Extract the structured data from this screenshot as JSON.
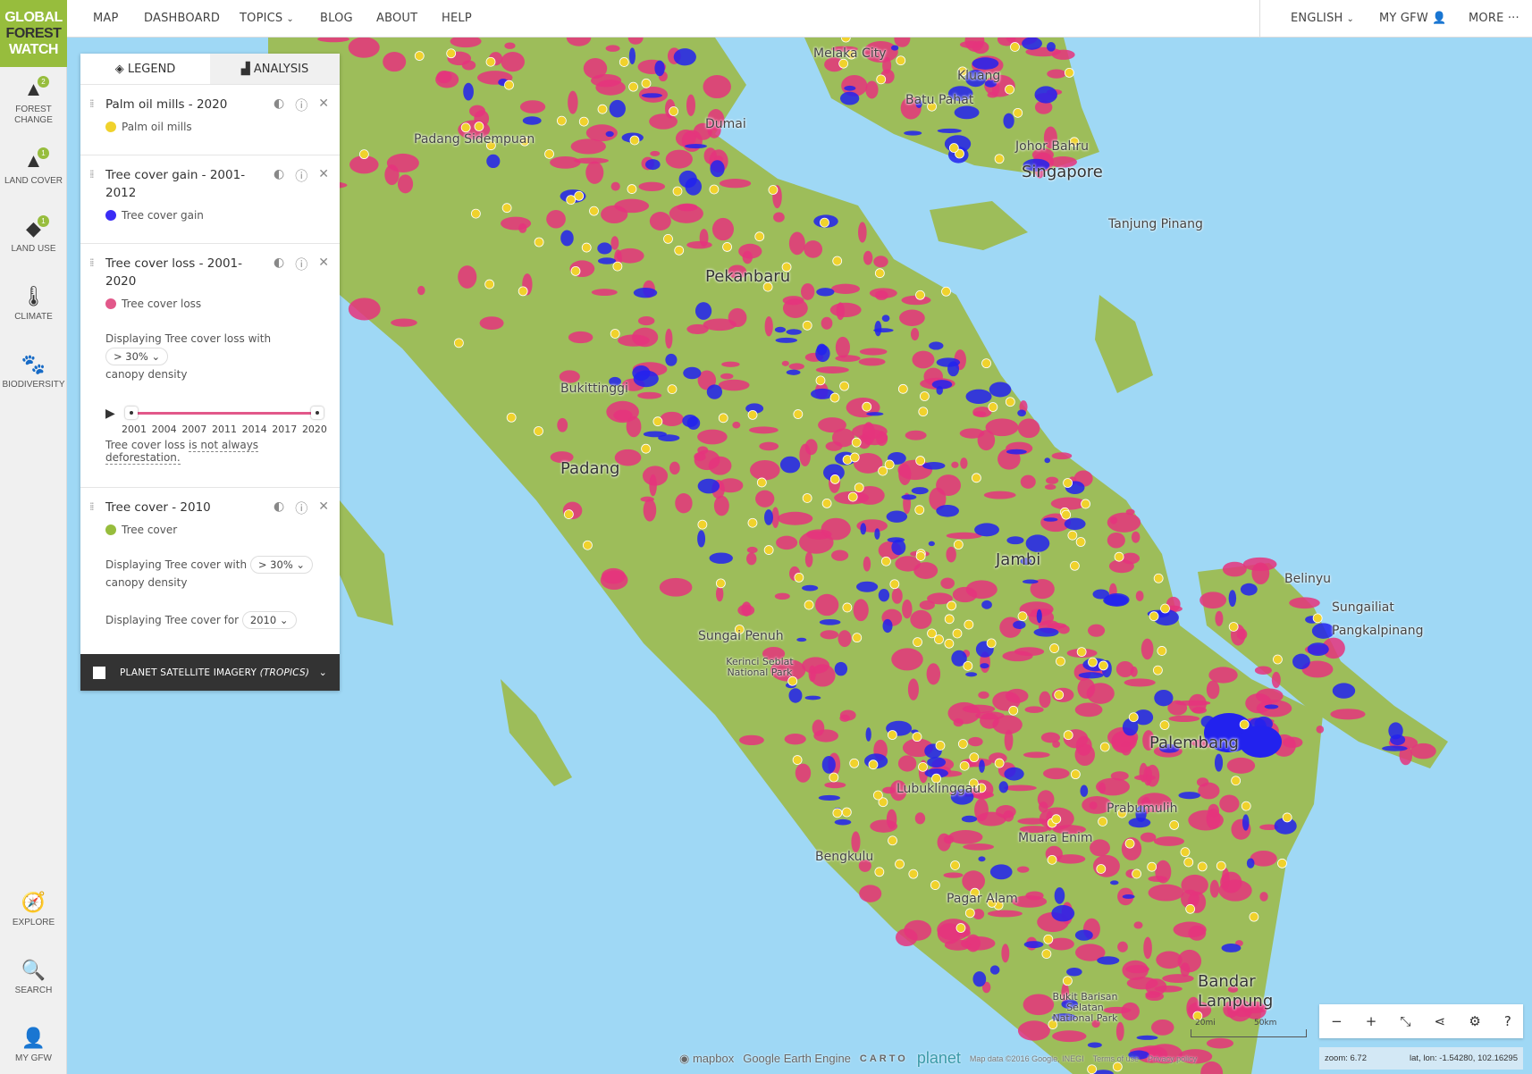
{
  "brand": {
    "logo_lines": [
      "GLOBAL",
      "FOREST",
      "WATCH"
    ],
    "accent": "#97bd3d"
  },
  "nav": {
    "items": [
      "MAP",
      "DASHBOARD",
      "TOPICS",
      "BLOG",
      "ABOUT",
      "HELP"
    ],
    "right": {
      "language": "ENGLISH",
      "account": "MY GFW",
      "more": "MORE"
    }
  },
  "sidebar": {
    "top": [
      {
        "label": "FOREST CHANGE",
        "icon": "tree-icon",
        "badge": "2"
      },
      {
        "label": "LAND COVER",
        "icon": "tree-ground-icon",
        "badge": "1"
      },
      {
        "label": "LAND USE",
        "icon": "land-parcels-icon",
        "badge": "1"
      },
      {
        "label": "CLIMATE",
        "icon": "thermometer-icon"
      },
      {
        "label": "BIODIVERSITY",
        "icon": "paw-icon"
      }
    ],
    "bottom": [
      {
        "label": "EXPLORE",
        "icon": "compass-icon"
      },
      {
        "label": "SEARCH",
        "icon": "search-icon"
      },
      {
        "label": "MY GFW",
        "icon": "user-icon"
      }
    ]
  },
  "legend": {
    "tabs": {
      "legend": "LEGEND",
      "analysis": "ANALYSIS",
      "active": "legend"
    },
    "layers": [
      {
        "title": "Palm oil mills - 2020",
        "key": "Palm oil mills",
        "color": "#f0d22c"
      },
      {
        "title": "Tree cover gain - 2001-2012",
        "key": "Tree cover gain",
        "color": "#3a2cf5"
      },
      {
        "title": "Tree cover loss - 2001-2020",
        "key": "Tree cover loss",
        "color": "#e2588a",
        "density_prefix": "Displaying Tree cover loss with",
        "density": "> 30%",
        "density_suffix": "canopy density",
        "timeline": {
          "years": [
            "2001",
            "2004",
            "2007",
            "2011",
            "2014",
            "2017",
            "2020"
          ],
          "start": "2001",
          "end": "2020"
        },
        "note_prefix": "Tree cover loss ",
        "note_link": "is not always deforestation."
      },
      {
        "title": "Tree cover - 2010",
        "key": "Tree cover",
        "color": "#97bd3d",
        "density_prefix": "Displaying Tree cover with",
        "density": "> 30%",
        "density_suffix": "canopy density",
        "year_prefix": "Displaying Tree cover for",
        "year": "2010"
      }
    ],
    "planet": {
      "label": "PLANET SATELLITE IMAGERY ",
      "label_italic": "(TROPICS)",
      "checked": false
    }
  },
  "map": {
    "colors": {
      "water": "#9fd8f5",
      "land": "#9dbd5a",
      "loss": "#e5347c",
      "gain": "#2222ee",
      "mills": "#f0d22c"
    },
    "places": [
      {
        "name": "Melaka City",
        "size": "n"
      },
      {
        "name": "Kluang",
        "size": "n"
      },
      {
        "name": "Batu Pahat",
        "size": "n"
      },
      {
        "name": "Dumai",
        "size": "n"
      },
      {
        "name": "Padang Sidempuan",
        "size": "n"
      },
      {
        "name": "Johor Bahru",
        "size": "n"
      },
      {
        "name": "Singapore",
        "size": "big"
      },
      {
        "name": "Tanjung Pinang",
        "size": "n"
      },
      {
        "name": "Pekanbaru",
        "size": "big"
      },
      {
        "name": "Bukittinggi",
        "size": "n"
      },
      {
        "name": "Padang",
        "size": "big"
      },
      {
        "name": "Jambi",
        "size": "big"
      },
      {
        "name": "Belinyu",
        "size": "n"
      },
      {
        "name": "Sungailiat",
        "size": "n"
      },
      {
        "name": "Pangkalpinang",
        "size": "n"
      },
      {
        "name": "Sungai Penuh",
        "size": "n"
      },
      {
        "name": "Kerinci Seblat National Park",
        "size": "small"
      },
      {
        "name": "Palembang",
        "size": "big"
      },
      {
        "name": "Lubuklinggau",
        "size": "n"
      },
      {
        "name": "Prabumulih",
        "size": "n"
      },
      {
        "name": "Muara Enim",
        "size": "n"
      },
      {
        "name": "Bengkulu",
        "size": "n"
      },
      {
        "name": "Pagar Alam",
        "size": "n"
      },
      {
        "name": "Bukit Barisan Selatan National Park",
        "size": "small"
      },
      {
        "name": "Bandar Lampung",
        "size": "big"
      }
    ],
    "attribution": {
      "mapbox": "mapbox",
      "gee": "Google Earth Engine",
      "carto": "CARTO",
      "planet": "planet",
      "data": "Map data ©2016 Google, INEGI",
      "terms": "Terms of use",
      "privacy": "Privacy policy"
    },
    "scale": {
      "imperial": "20mi",
      "metric": "50km"
    },
    "controls": [
      "zoom-out",
      "zoom-in",
      "fullscreen",
      "share",
      "settings",
      "help"
    ],
    "status": {
      "zoom": "zoom: 6.72",
      "latlon": "lat, lon: -1.54280, 102.16295"
    }
  }
}
